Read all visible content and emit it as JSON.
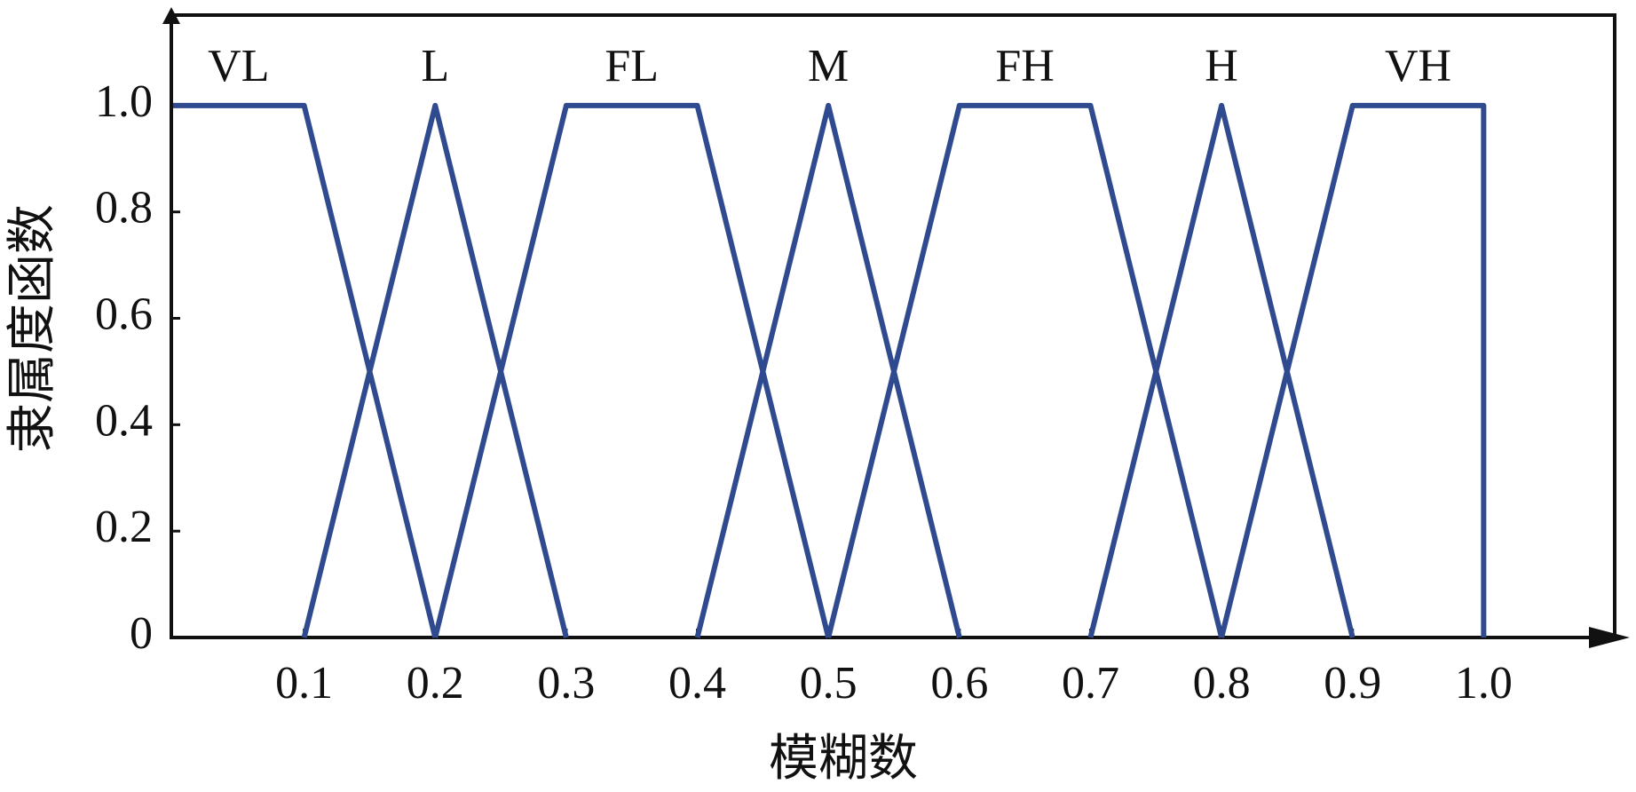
{
  "chart_data": {
    "type": "line",
    "xlabel": "模糊数",
    "ylabel": "隶属度函数",
    "xlim": [
      0,
      1.1
    ],
    "ylim": [
      0,
      1.17
    ],
    "xticks": [
      0.1,
      0.2,
      0.3,
      0.4,
      0.5,
      0.6,
      0.7,
      0.8,
      0.9,
      {
        "value": 1,
        "label": "1.0"
      }
    ],
    "yticks": [
      0,
      0.2,
      0.4,
      0.6,
      0.8,
      {
        "value": 1,
        "label": "1.0"
      }
    ],
    "grid": false,
    "series": [
      {
        "name": "VL",
        "color": "#2f4a8e",
        "x": [
          0,
          0.1,
          0.2
        ],
        "values": [
          1,
          1,
          0
        ]
      },
      {
        "name": "L",
        "color": "#2f4a8e",
        "x": [
          0.1,
          0.2,
          0.3
        ],
        "values": [
          0,
          1,
          0
        ]
      },
      {
        "name": "FL",
        "color": "#2f4a8e",
        "x": [
          0.2,
          0.3,
          0.4,
          0.5
        ],
        "values": [
          0,
          1,
          1,
          0
        ]
      },
      {
        "name": "M",
        "color": "#2f4a8e",
        "x": [
          0.4,
          0.5,
          0.6
        ],
        "values": [
          0,
          1,
          0
        ]
      },
      {
        "name": "FH",
        "color": "#2f4a8e",
        "x": [
          0.5,
          0.6,
          0.7,
          0.8
        ],
        "values": [
          0,
          1,
          1,
          0
        ]
      },
      {
        "name": "H",
        "color": "#2f4a8e",
        "x": [
          0.7,
          0.8,
          0.9
        ],
        "values": [
          0,
          1,
          0
        ]
      },
      {
        "name": "VH",
        "color": "#2f4a8e",
        "x": [
          0.8,
          0.9,
          1,
          1
        ],
        "values": [
          0,
          1,
          1,
          0
        ]
      }
    ]
  }
}
